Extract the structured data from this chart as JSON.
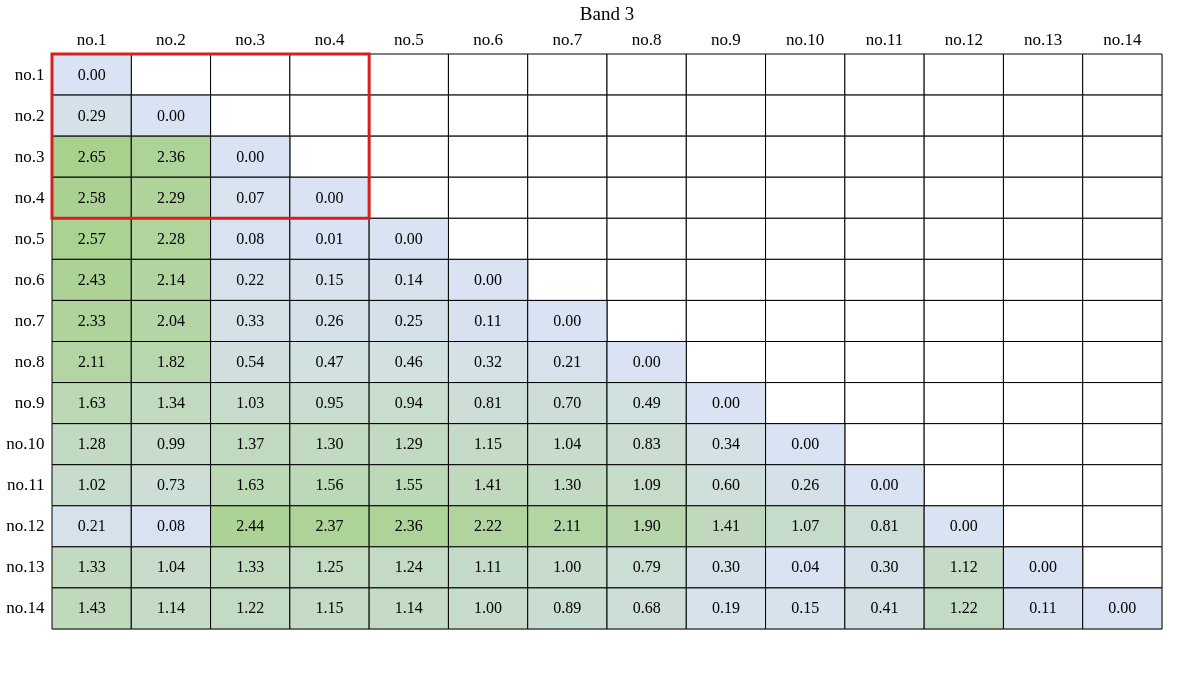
{
  "chart_data": {
    "type": "heatmap",
    "title": "Band 3",
    "categories": [
      "no.1",
      "no.2",
      "no.3",
      "no.4",
      "no.5",
      "no.6",
      "no.7",
      "no.8",
      "no.9",
      "no.10",
      "no.11",
      "no.12",
      "no.13",
      "no.14"
    ],
    "y_categories": [
      "no.1",
      "no.2",
      "no.3",
      "no.4",
      "no.5",
      "no.6",
      "no.7",
      "no.8",
      "no.9",
      "no.10",
      "no.11",
      "no.12",
      "no.13",
      "no.14"
    ],
    "cells": [
      [
        0.0,
        null,
        null,
        null,
        null,
        null,
        null,
        null,
        null,
        null,
        null,
        null,
        null,
        null
      ],
      [
        0.29,
        0.0,
        null,
        null,
        null,
        null,
        null,
        null,
        null,
        null,
        null,
        null,
        null,
        null
      ],
      [
        2.65,
        2.36,
        0.0,
        null,
        null,
        null,
        null,
        null,
        null,
        null,
        null,
        null,
        null,
        null
      ],
      [
        2.58,
        2.29,
        0.07,
        0.0,
        null,
        null,
        null,
        null,
        null,
        null,
        null,
        null,
        null,
        null
      ],
      [
        2.57,
        2.28,
        0.08,
        0.01,
        0.0,
        null,
        null,
        null,
        null,
        null,
        null,
        null,
        null,
        null
      ],
      [
        2.43,
        2.14,
        0.22,
        0.15,
        0.14,
        0.0,
        null,
        null,
        null,
        null,
        null,
        null,
        null,
        null
      ],
      [
        2.33,
        2.04,
        0.33,
        0.26,
        0.25,
        0.11,
        0.0,
        null,
        null,
        null,
        null,
        null,
        null,
        null
      ],
      [
        2.11,
        1.82,
        0.54,
        0.47,
        0.46,
        0.32,
        0.21,
        0.0,
        null,
        null,
        null,
        null,
        null,
        null
      ],
      [
        1.63,
        1.34,
        1.03,
        0.95,
        0.94,
        0.81,
        0.7,
        0.49,
        0.0,
        null,
        null,
        null,
        null,
        null
      ],
      [
        1.28,
        0.99,
        1.37,
        1.3,
        1.29,
        1.15,
        1.04,
        0.83,
        0.34,
        0.0,
        null,
        null,
        null,
        null
      ],
      [
        1.02,
        0.73,
        1.63,
        1.56,
        1.55,
        1.41,
        1.3,
        1.09,
        0.6,
        0.26,
        0.0,
        null,
        null,
        null
      ],
      [
        0.21,
        0.08,
        2.44,
        2.37,
        2.36,
        2.22,
        2.11,
        1.9,
        1.41,
        1.07,
        0.81,
        0.0,
        null,
        null
      ],
      [
        1.33,
        1.04,
        1.33,
        1.25,
        1.24,
        1.11,
        1.0,
        0.79,
        0.3,
        0.04,
        0.3,
        1.12,
        0.0,
        null
      ],
      [
        1.43,
        1.14,
        1.22,
        1.15,
        1.14,
        1.0,
        0.89,
        0.68,
        0.19,
        0.15,
        0.41,
        1.22,
        0.11,
        0.0
      ]
    ],
    "cell_labels": [
      [
        "0.00",
        null,
        null,
        null,
        null,
        null,
        null,
        null,
        null,
        null,
        null,
        null,
        null,
        null
      ],
      [
        "0.29",
        "0.00",
        null,
        null,
        null,
        null,
        null,
        null,
        null,
        null,
        null,
        null,
        null,
        null
      ],
      [
        "2.65",
        "2.36",
        "0.00",
        null,
        null,
        null,
        null,
        null,
        null,
        null,
        null,
        null,
        null,
        null
      ],
      [
        "2.58",
        "2.29",
        "0.07",
        "0.00",
        null,
        null,
        null,
        null,
        null,
        null,
        null,
        null,
        null,
        null
      ],
      [
        "2.57",
        "2.28",
        "0.08",
        "0.01",
        "0.00",
        null,
        null,
        null,
        null,
        null,
        null,
        null,
        null,
        null
      ],
      [
        "2.43",
        "2.14",
        "0.22",
        "0.15",
        "0.14",
        "0.00",
        null,
        null,
        null,
        null,
        null,
        null,
        null,
        null
      ],
      [
        "2.33",
        "2.04",
        "0.33",
        "0.26",
        "0.25",
        "0.11",
        "0.00",
        null,
        null,
        null,
        null,
        null,
        null,
        null
      ],
      [
        "2.11",
        "1.82",
        "0.54",
        "0.47",
        "0.46",
        "0.32",
        "0.21",
        "0.00",
        null,
        null,
        null,
        null,
        null,
        null
      ],
      [
        "1.63",
        "1.34",
        "1.03",
        "0.95",
        "0.94",
        "0.81",
        "0.70",
        "0.49",
        "0.00",
        null,
        null,
        null,
        null,
        null
      ],
      [
        "1.28",
        "0.99",
        "1.37",
        "1.30",
        "1.29",
        "1.15",
        "1.04",
        "0.83",
        "0.34",
        "0.00",
        null,
        null,
        null,
        null
      ],
      [
        "1.02",
        "0.73",
        "1.63",
        "1.56",
        "1.55",
        "1.41",
        "1.30",
        "1.09",
        "0.60",
        "0.26",
        "0.00",
        null,
        null,
        null
      ],
      [
        "0.21",
        "0.08",
        "2.44",
        "2.37",
        "2.36",
        "2.22",
        "2.11",
        "1.90",
        "1.41",
        "1.07",
        "0.81",
        "0.00",
        null,
        null
      ],
      [
        "1.33",
        "1.04",
        "1.33",
        "1.25",
        "1.24",
        "1.11",
        "1.00",
        "0.79",
        "0.30",
        "0.04",
        "0.30",
        "1.12",
        "0.00",
        null
      ],
      [
        "1.43",
        "1.14",
        "1.22",
        "1.15",
        "1.14",
        "1.00",
        "0.89",
        "0.68",
        "0.19",
        "0.15",
        "0.41",
        "1.22",
        "0.11",
        "0.00"
      ]
    ]
  }
}
